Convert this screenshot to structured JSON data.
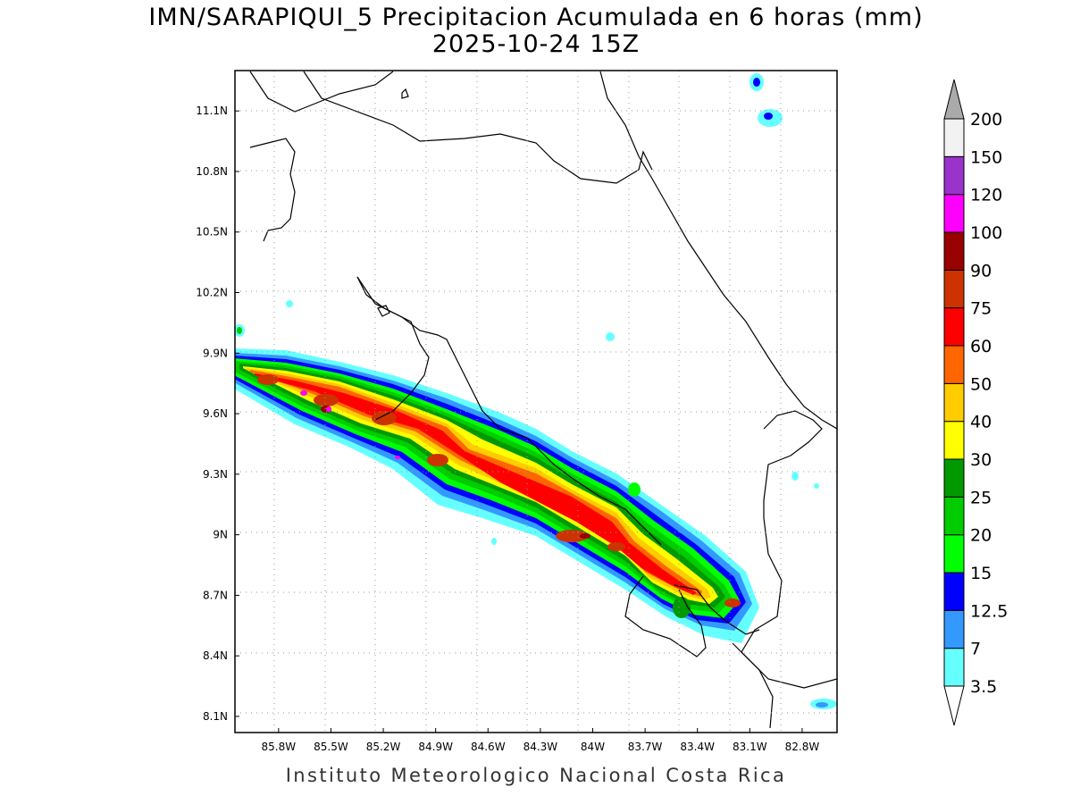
{
  "title": {
    "line1": "IMN/SARAPIQUI_5 Precipitacion Acumulada en 6 horas (mm)",
    "line2": "2025-10-24 15Z"
  },
  "footer": "Instituto Meteorologico Nacional Costa Rica",
  "map": {
    "lon_range": [
      -86.05,
      -82.6
    ],
    "lat_range": [
      8.02,
      11.3
    ],
    "lat_ticks": [
      {
        "value": 11.1,
        "label": "11.1N"
      },
      {
        "value": 10.8,
        "label": "10.8N"
      },
      {
        "value": 10.5,
        "label": "10.5N"
      },
      {
        "value": 10.2,
        "label": "10.2N"
      },
      {
        "value": 9.9,
        "label": "9.9N"
      },
      {
        "value": 9.6,
        "label": "9.6N"
      },
      {
        "value": 9.3,
        "label": "9.3N"
      },
      {
        "value": 9.0,
        "label": "9N"
      },
      {
        "value": 8.7,
        "label": "8.7N"
      },
      {
        "value": 8.4,
        "label": "8.4N"
      },
      {
        "value": 8.1,
        "label": "8.1N"
      }
    ],
    "lon_ticks": [
      {
        "value": -85.8,
        "label": "85.8W"
      },
      {
        "value": -85.5,
        "label": "85.5W"
      },
      {
        "value": -85.2,
        "label": "85.2W"
      },
      {
        "value": -84.9,
        "label": "84.9W"
      },
      {
        "value": -84.6,
        "label": "84.6W"
      },
      {
        "value": -84.3,
        "label": "84.3W"
      },
      {
        "value": -84.0,
        "label": "84W"
      },
      {
        "value": -83.7,
        "label": "83.7W"
      },
      {
        "value": -83.4,
        "label": "83.4W"
      },
      {
        "value": -83.1,
        "label": "83.1W"
      },
      {
        "value": -82.8,
        "label": "82.8W"
      }
    ],
    "grid": "dotted"
  },
  "colorbar": {
    "unit": "mm",
    "labels": [
      "3.5",
      "7",
      "12.5",
      "15",
      "20",
      "25",
      "30",
      "40",
      "50",
      "60",
      "75",
      "90",
      "100",
      "120",
      "150",
      "200"
    ],
    "colors": [
      "#66ffff",
      "#3399ff",
      "#0000ff",
      "#00ff00",
      "#00cc00",
      "#009900",
      "#ffff00",
      "#ffcc00",
      "#ff6600",
      "#ff0000",
      "#cc3300",
      "#990000",
      "#ff00ff",
      "#9933cc",
      "#f2f2f2"
    ],
    "under_color": "#ffffff",
    "over_color": "#aaaaaa"
  }
}
